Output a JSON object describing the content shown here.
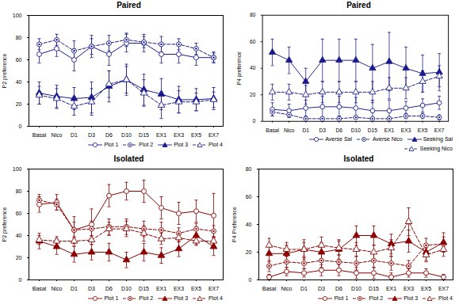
{
  "chart_data": [
    {
      "type": "line",
      "title": "Paired",
      "y_label": "P2 preference",
      "categories": [
        "Basal",
        "Nico",
        "D1",
        "D3",
        "D6",
        "D10",
        "D15",
        "EX1",
        "EX3",
        "EX5",
        "EX7"
      ],
      "ylim": [
        0,
        100
      ],
      "yticks": [
        0,
        20,
        40,
        60,
        80,
        100
      ],
      "grid": false,
      "legend": "lower right",
      "color": "#1a1a8c",
      "series": [
        {
          "name": "Plot 1",
          "marker": "circle_open",
          "line_style": "solid",
          "values": [
            65,
            70,
            60,
            72,
            65,
            75,
            75,
            65,
            65,
            62,
            62
          ],
          "errors": [
            8,
            7,
            10,
            10,
            10,
            8,
            8,
            8,
            8,
            7,
            5
          ]
        },
        {
          "name": "Plot 2",
          "marker": "bullseye",
          "line_style": "dashed",
          "values": [
            74,
            78,
            68,
            72,
            75,
            78,
            76,
            74,
            74,
            70,
            62
          ],
          "errors": [
            5,
            5,
            9,
            7,
            7,
            6,
            5,
            7,
            5,
            5,
            4
          ]
        },
        {
          "name": "Plot 3",
          "marker": "triangle",
          "line_style": "solid",
          "values": [
            30,
            27,
            25,
            26,
            36,
            42,
            33,
            29,
            24,
            24,
            25
          ],
          "errors": [
            10,
            10,
            10,
            14,
            14,
            14,
            14,
            14,
            12,
            10,
            10
          ]
        },
        {
          "name": "Plot 4",
          "marker": "triangle_open",
          "line_style": "dashed",
          "values": [
            28,
            25,
            18,
            22,
            38,
            42,
            30,
            19,
            22,
            22,
            24
          ],
          "errors": [
            8,
            9,
            8,
            12,
            12,
            12,
            12,
            12,
            10,
            8,
            7
          ]
        }
      ]
    },
    {
      "type": "line",
      "title": "Paired",
      "y_label": "P4 preference",
      "categories": [
        "Basal",
        "Nico",
        "D1",
        "D3",
        "D6",
        "D10",
        "D15",
        "EX1",
        "EX3",
        "EX5",
        "EX7"
      ],
      "ylim": [
        0,
        80
      ],
      "yticks": [
        0,
        20,
        40,
        60,
        80
      ],
      "grid": false,
      "legend": "lower right",
      "color": "#1a1a8c",
      "series": [
        {
          "name": "Averse Sal",
          "marker": "circle_open",
          "line_style": "solid",
          "values": [
            9,
            8,
            10,
            11,
            11,
            10,
            8,
            8,
            10,
            12,
            14
          ],
          "errors": [
            5,
            5,
            6,
            8,
            8,
            8,
            8,
            8,
            5,
            5,
            5
          ]
        },
        {
          "name": "Averse Nico",
          "marker": "bullseye",
          "line_style": "dashed",
          "values": [
            7,
            5,
            2,
            2,
            2,
            3,
            2,
            2,
            4,
            4,
            3
          ],
          "errors": [
            3,
            2,
            1,
            1,
            2,
            1,
            1,
            1,
            2,
            2,
            2
          ]
        },
        {
          "name": "Seeking Sal",
          "marker": "triangle",
          "line_style": "solid",
          "values": [
            52,
            46,
            30,
            46,
            46,
            46,
            40,
            45,
            40,
            36,
            37
          ],
          "errors": [
            10,
            10,
            10,
            16,
            16,
            16,
            18,
            22,
            16,
            14,
            14
          ]
        },
        {
          "name": "Seeking Nico",
          "marker": "triangle_open",
          "line_style": "dashed",
          "values": [
            22,
            22,
            20,
            22,
            22,
            22,
            22,
            25,
            25,
            30,
            34
          ],
          "errors": [
            6,
            6,
            7,
            8,
            8,
            8,
            8,
            8,
            8,
            8,
            8
          ]
        }
      ]
    },
    {
      "type": "line",
      "title": "Isolated",
      "y_label": "P2 preference",
      "categories": [
        "Basal",
        "Nico",
        "D1",
        "D3",
        "D6",
        "D10",
        "D15",
        "EX1",
        "EX3",
        "EX5",
        "EX7"
      ],
      "ylim": [
        0,
        100
      ],
      "yticks": [
        0,
        20,
        40,
        60,
        80,
        100
      ],
      "grid": false,
      "legend": "lower right",
      "color": "#8B0000",
      "series": [
        {
          "name": "Plot 1",
          "marker": "circle_open",
          "line_style": "solid",
          "values": [
            68,
            70,
            45,
            50,
            76,
            80,
            80,
            65,
            60,
            62,
            58
          ],
          "errors": [
            7,
            7,
            12,
            14,
            10,
            8,
            10,
            10,
            10,
            10,
            20
          ]
        },
        {
          "name": "Plot 2",
          "marker": "bullseye",
          "line_style": "dashed",
          "values": [
            72,
            68,
            45,
            46,
            48,
            48,
            46,
            45,
            42,
            46,
            44
          ],
          "errors": [
            5,
            5,
            7,
            7,
            7,
            7,
            7,
            7,
            5,
            5,
            5
          ]
        },
        {
          "name": "Plot 3",
          "marker": "triangle",
          "line_style": "solid",
          "values": [
            35,
            30,
            23,
            25,
            25,
            18,
            25,
            22,
            28,
            40,
            30
          ],
          "errors": [
            7,
            7,
            7,
            7,
            8,
            7,
            8,
            7,
            7,
            8,
            8
          ]
        },
        {
          "name": "Plot 4",
          "marker": "triangle_open",
          "line_style": "dashed",
          "values": [
            36,
            35,
            35,
            36,
            46,
            46,
            42,
            37,
            38,
            35,
            35
          ],
          "errors": [
            4,
            4,
            4,
            4,
            6,
            7,
            7,
            5,
            4,
            4,
            4
          ]
        }
      ]
    },
    {
      "type": "line",
      "title": "Isolated",
      "y_label": "P4 Preference",
      "categories": [
        "Basal",
        "Nico",
        "D1",
        "D3",
        "D6",
        "D10",
        "D15",
        "EX1",
        "EX3",
        "EX5",
        "EX7"
      ],
      "ylim": [
        0,
        80
      ],
      "yticks": [
        0,
        20,
        40,
        60,
        80
      ],
      "grid": false,
      "legend": "lower right",
      "color": "#8B0000",
      "series": [
        {
          "name": "Plot 1",
          "marker": "circle_open",
          "line_style": "solid",
          "values": [
            2,
            6,
            5,
            7,
            7,
            5,
            5,
            2,
            5,
            5,
            2
          ],
          "errors": [
            2,
            3,
            3,
            4,
            4,
            4,
            4,
            3,
            3,
            3,
            2
          ]
        },
        {
          "name": "Plot 2",
          "marker": "bullseye",
          "line_style": "dashed",
          "values": [
            10,
            13,
            12,
            14,
            13,
            12,
            14,
            12,
            10,
            25,
            26
          ],
          "errors": [
            4,
            4,
            4,
            5,
            5,
            5,
            5,
            5,
            4,
            5,
            5
          ]
        },
        {
          "name": "Plot 3",
          "marker": "triangle",
          "line_style": "solid",
          "values": [
            19,
            19,
            22,
            20,
            22,
            32,
            32,
            26,
            28,
            20,
            27
          ],
          "errors": [
            6,
            6,
            7,
            7,
            7,
            7,
            7,
            7,
            8,
            6,
            7
          ]
        },
        {
          "name": "Plot 4",
          "marker": "triangle_open",
          "line_style": "dashed",
          "values": [
            25,
            22,
            22,
            25,
            23,
            22,
            20,
            23,
            42,
            18,
            22
          ],
          "errors": [
            5,
            5,
            5,
            6,
            5,
            5,
            5,
            6,
            10,
            5,
            5
          ]
        }
      ]
    }
  ]
}
